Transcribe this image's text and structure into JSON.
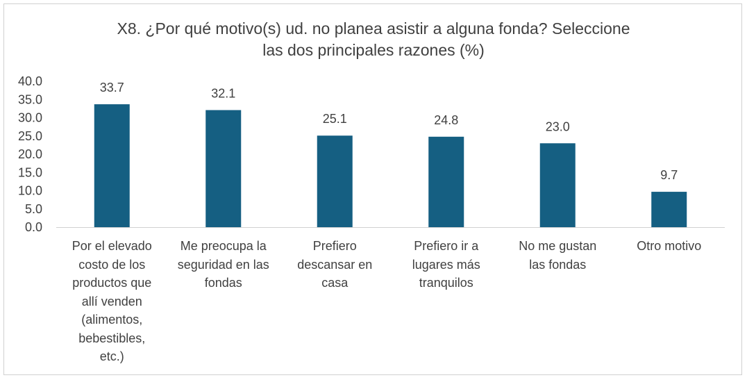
{
  "chart_data": {
    "type": "bar",
    "title_line1": "X8. ¿Por qué motivo(s) ud. no planea asistir a alguna fonda? Seleccione",
    "title_line2": "las dos principales razones (%)",
    "categories": [
      [
        "Por el elevado",
        "costo de los",
        "productos que",
        "allí venden",
        "(alimentos,",
        "bebestibles,",
        "etc.)"
      ],
      [
        "Me preocupa la",
        "seguridad en las",
        "fondas"
      ],
      [
        "Prefiero",
        "descansar en",
        "casa"
      ],
      [
        "Prefiero ir a",
        "lugares más",
        "tranquilos"
      ],
      [
        "No me gustan",
        "las fondas"
      ],
      [
        "Otro motivo"
      ]
    ],
    "values": [
      33.7,
      32.1,
      25.1,
      24.8,
      23.0,
      9.7
    ],
    "value_labels": [
      "33.7",
      "32.1",
      "25.1",
      "24.8",
      "23.0",
      "9.7"
    ],
    "ylim": [
      0,
      40
    ],
    "yticks": [
      "0.0",
      "5.0",
      "10.0",
      "15.0",
      "20.0",
      "25.0",
      "30.0",
      "35.0",
      "40.0"
    ],
    "bar_color": "#155f82",
    "grid": false,
    "legend": false
  }
}
